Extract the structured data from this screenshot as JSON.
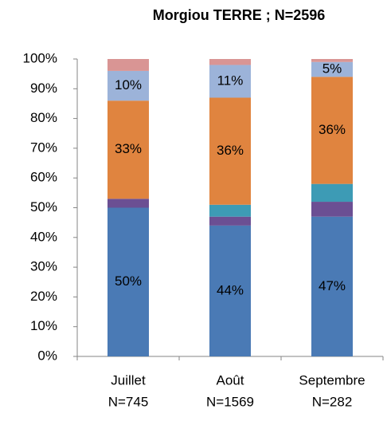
{
  "chart_data": {
    "type": "stacked_bar",
    "title": "Morgiou TERRE ; N=2596",
    "categories": [
      [
        "Juillet",
        "N=745"
      ],
      [
        "Août",
        "N=1569"
      ],
      [
        "Septembre",
        "N=282"
      ]
    ],
    "series": [
      {
        "color": "#4a7ab5",
        "values": [
          50,
          44,
          47
        ],
        "value_labels": [
          "50%",
          "44%",
          "47%"
        ]
      },
      {
        "color": "#6b4f93",
        "values": [
          3,
          3,
          5
        ]
      },
      {
        "color": "#3d9bb5",
        "values": [
          0,
          4,
          6
        ]
      },
      {
        "color": "#e0843f",
        "values": [
          33,
          36,
          36
        ],
        "value_labels": [
          "33%",
          "36%",
          "36%"
        ]
      },
      {
        "color": "#9cb3d9",
        "values": [
          10,
          11,
          5
        ],
        "value_labels": [
          "10%",
          "11%",
          "5%"
        ]
      },
      {
        "color": "#d99594",
        "values": [
          4,
          2,
          1
        ]
      }
    ],
    "ylim": [
      0,
      100
    ],
    "yticks": [
      {
        "value": 0,
        "label": "0%"
      },
      {
        "value": 10,
        "label": "10%"
      },
      {
        "value": 20,
        "label": "20%"
      },
      {
        "value": 30,
        "label": "30%"
      },
      {
        "value": 40,
        "label": "40%"
      },
      {
        "value": 50,
        "label": "50%"
      },
      {
        "value": 60,
        "label": "60%"
      },
      {
        "value": 70,
        "label": "70%"
      },
      {
        "value": 80,
        "label": "80%"
      },
      {
        "value": 90,
        "label": "90%"
      },
      {
        "value": 100,
        "label": "100%"
      }
    ],
    "grid": false
  }
}
